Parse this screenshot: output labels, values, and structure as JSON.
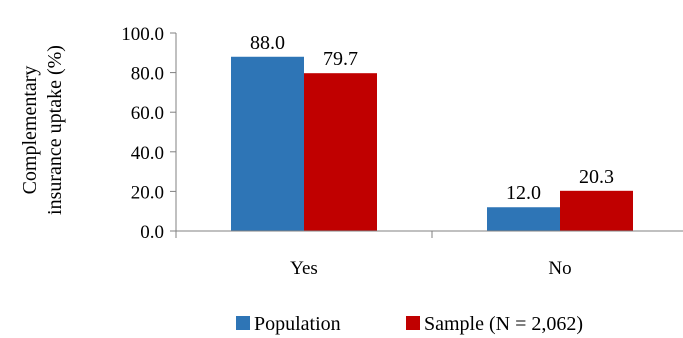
{
  "chart_data": {
    "type": "bar",
    "title": "",
    "xlabel": "",
    "ylabel_lines": [
      "Complementary",
      "insurance uptake (%)"
    ],
    "categories": [
      "Yes",
      "No"
    ],
    "series": [
      {
        "name": "Population",
        "values": [
          88.0,
          12.0
        ],
        "labels": [
          "88.0",
          "12.0"
        ],
        "color": "#2E75B6"
      },
      {
        "name": "Sample (N = 2,062)",
        "values": [
          79.7,
          20.3
        ],
        "labels": [
          "79.7",
          "20.3"
        ],
        "color": "#C00000"
      }
    ],
    "ylim": [
      0,
      100
    ],
    "yticks": [
      0,
      20,
      40,
      60,
      80,
      100
    ],
    "ytick_labels": [
      "0.0",
      "20.0",
      "40.0",
      "60.0",
      "80.0",
      "100.0"
    ],
    "grid": false,
    "legend_position": "bottom"
  }
}
